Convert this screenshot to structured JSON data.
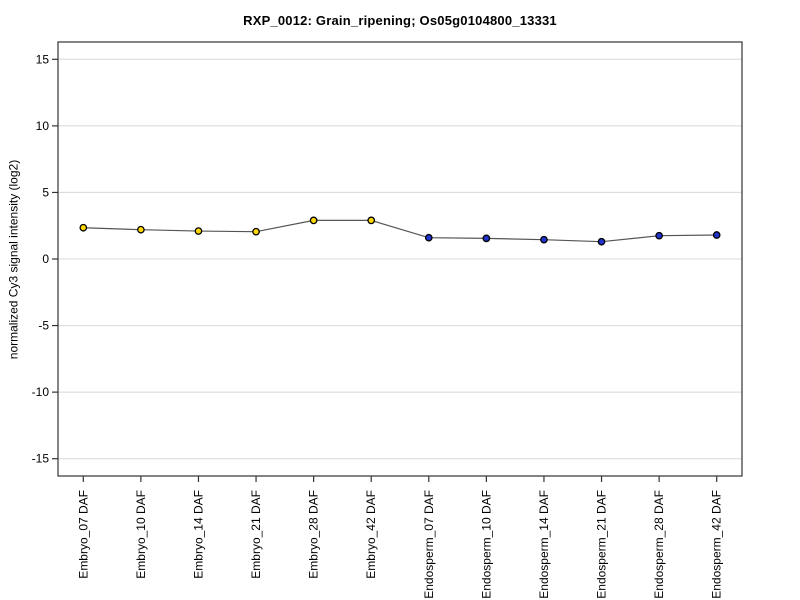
{
  "chart_data": {
    "type": "line",
    "title": "RXP_0012: Grain_ripening; Os05g0104800_13331",
    "ylabel": "normalized Cy3 signal intensity (log2)",
    "xlabel": "",
    "categories": [
      "Embryo_07 DAF",
      "Embryo_10 DAF",
      "Embryo_14 DAF",
      "Embryo_21 DAF",
      "Embryo_28 DAF",
      "Embryo_42 DAF",
      "Endosperm_07 DAF",
      "Endosperm_10 DAF",
      "Endosperm_14 DAF",
      "Endosperm_21 DAF",
      "Endosperm_28 DAF",
      "Endosperm_42 DAF"
    ],
    "values": [
      2.35,
      2.2,
      2.1,
      2.05,
      2.9,
      2.9,
      1.6,
      1.55,
      1.45,
      1.3,
      1.75,
      1.8
    ],
    "groups": [
      "embryo",
      "embryo",
      "embryo",
      "embryo",
      "embryo",
      "embryo",
      "endosperm",
      "endosperm",
      "endosperm",
      "endosperm",
      "endosperm",
      "endosperm"
    ],
    "yticks": [
      15,
      10,
      5,
      0,
      -5,
      -10,
      -15
    ],
    "ylim": [
      -16.3,
      16.3
    ],
    "grid": "horizontal",
    "legend": "none",
    "colors": {
      "embryo_marker": "#FFD700",
      "endosperm_marker": "#2233CC",
      "marker_outline": "#000000",
      "line": "#555555",
      "gridline": "#D8D8D8",
      "frame": "#333333",
      "background": "#FFFFFF"
    }
  }
}
